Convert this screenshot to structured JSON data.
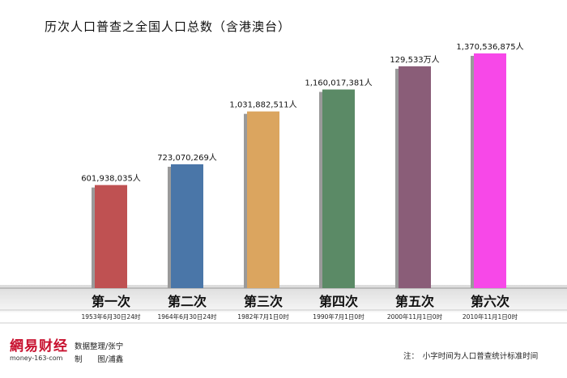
{
  "chart_data": {
    "type": "bar",
    "title": "历次人口普查之全国人口总数（含港澳台）",
    "categories": [
      "第一次",
      "第二次",
      "第三次",
      "第四次",
      "第五次",
      "第六次"
    ],
    "dates": [
      "1953年6月30日24时",
      "1964年6月30日24时",
      "1982年7月1日0时",
      "1990年7月1日0时",
      "2000年11月1日0时",
      "2010年11月1日0时"
    ],
    "values": [
      601938035,
      723070269,
      1031882511,
      1160017381,
      1295330000,
      1370536875
    ],
    "value_labels": [
      "601,938,035人",
      "723,070,269人",
      "1,031,882,511人",
      "1,160,017,381人",
      "129,533万人",
      "1,370,536,875人"
    ],
    "colors": [
      "#bf5152",
      "#4a76a8",
      "#dba55f",
      "#5b8a66",
      "#8a5d78",
      "#f748e8"
    ],
    "ylim": [
      0,
      1400000000
    ],
    "grid": false,
    "legend": "none"
  },
  "footer": {
    "logo_zh": "網易财经",
    "logo_en": "money-163-com",
    "data_credit": "数据整理/张宁",
    "design_credit": "制　　图/浦鑫",
    "note": "注：　小字时间为人口普查统计标准时间"
  }
}
